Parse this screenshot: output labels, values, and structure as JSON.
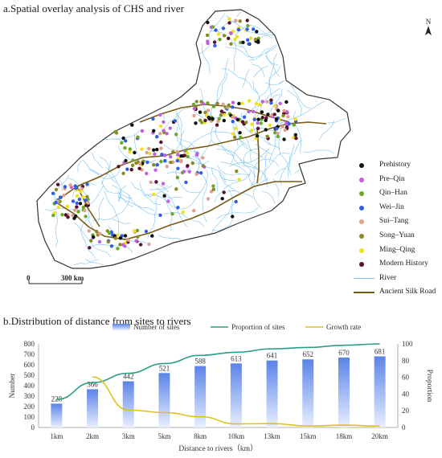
{
  "panel_a": {
    "title": "a.Spatial overlay analysis of CHS and river",
    "north_label": "N",
    "scale": {
      "zero": "0",
      "distance": "300 km"
    },
    "legend": [
      {
        "label": "Prehistory",
        "color": "#111111",
        "kind": "dot"
      },
      {
        "label": "Pre–Qin",
        "color": "#c060e0",
        "kind": "dot"
      },
      {
        "label": "Qin–Han",
        "color": "#6aa82a",
        "kind": "dot"
      },
      {
        "label": "Wei–Jin",
        "color": "#3060e0",
        "kind": "dot"
      },
      {
        "label": "Sui–Tang",
        "color": "#e0a090",
        "kind": "dot"
      },
      {
        "label": "Song–Yuan",
        "color": "#8a8a22",
        "kind": "dot"
      },
      {
        "label": "Ming–Qing",
        "color": "#f0e020",
        "kind": "dot"
      },
      {
        "label": "Modern History",
        "color": "#5a1030",
        "kind": "dot"
      },
      {
        "label": "River",
        "color": "#7fc4ee",
        "kind": "line"
      },
      {
        "label": "Ancient Silk Road",
        "color": "#7a5a14",
        "kind": "line"
      }
    ],
    "colors": {
      "river": "#64b8ec",
      "road": "#7a5a14",
      "boundary": "#333333"
    }
  },
  "panel_b": {
    "title": "b.Distribution of distance from sites to rivers"
  },
  "chart_data": {
    "type": "bar",
    "categories": [
      "1km",
      "2km",
      "3km",
      "5km",
      "8km",
      "10km",
      "13km",
      "15km",
      "18km",
      "20km"
    ],
    "series": [
      {
        "name": "Number of sites",
        "type": "bar",
        "axis": "left",
        "color": "#5b83e8",
        "values": [
          228,
          366,
          442,
          521,
          588,
          613,
          641,
          652,
          670,
          681
        ]
      },
      {
        "name": "Proportion of sites",
        "type": "line",
        "axis": "right",
        "color": "#2a9d84",
        "values": [
          33.5,
          53.7,
          64.9,
          76.5,
          86.3,
          90.0,
          94.1,
          95.7,
          98.4,
          100
        ]
      },
      {
        "name": "Growth rate",
        "type": "line",
        "axis": "right",
        "color": "#e0c020",
        "values": [
          null,
          60.5,
          20.8,
          17.9,
          12.9,
          4.3,
          4.6,
          1.7,
          2.8,
          1.6
        ]
      }
    ],
    "data_labels": [
      "228",
      "366",
      "442",
      "521",
      "588",
      "613",
      "641",
      "652",
      "670",
      "681"
    ],
    "xlabel": "Distance to rivers（km）",
    "ylabel_left": "Number",
    "ylabel_right": "Proportion",
    "ylim_left": [
      0,
      800
    ],
    "yticks_left": [
      "0",
      "100",
      "200",
      "300",
      "400",
      "500",
      "600",
      "700",
      "800"
    ],
    "ylim_right": [
      0,
      100
    ],
    "yticks_right": [
      "0",
      "20",
      "40",
      "60",
      "80",
      "100"
    ],
    "legend_position": "top",
    "grid": false
  }
}
